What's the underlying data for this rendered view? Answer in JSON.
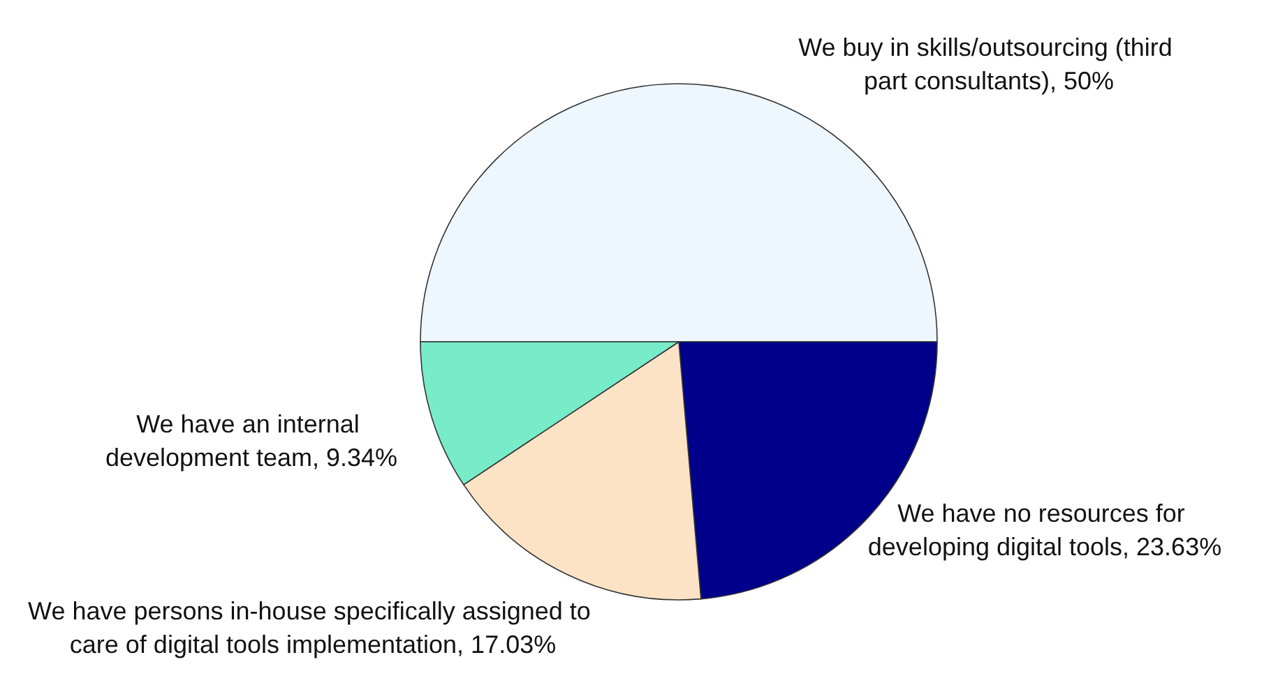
{
  "chart_data": {
    "type": "pie",
    "categories": [
      "We buy in skills/outsourcing (third part consultants)",
      "We have no resources for developing digital tools",
      "We have persons in-house specifically assigned to care of digital tools implementation",
      "We have an internal development team"
    ],
    "values": [
      50,
      23.63,
      17.03,
      9.34
    ],
    "colors": [
      "#eef6fe",
      "#00008b",
      "#fde3c5",
      "#78ecc9"
    ],
    "value_labels": [
      "50%",
      "23.63%",
      "17.03%",
      "9.34%"
    ]
  }
}
